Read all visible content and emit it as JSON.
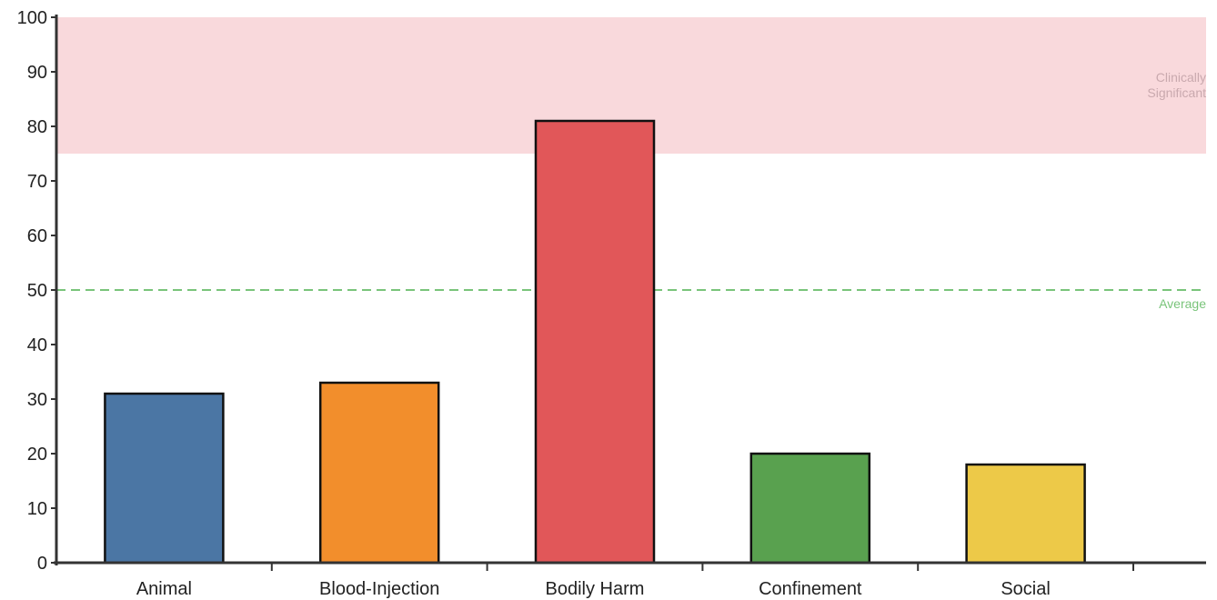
{
  "chart_data": {
    "type": "bar",
    "title": "",
    "xlabel": "",
    "ylabel": "",
    "categories": [
      "Animal",
      "Blood-Injection",
      "Bodily Harm",
      "Confinement",
      "Social"
    ],
    "values": [
      31,
      33,
      81,
      20,
      18
    ],
    "colors": [
      "#4b76a4",
      "#f28e2c",
      "#e15759",
      "#59a14f",
      "#edc948"
    ],
    "ylim": [
      0,
      100
    ],
    "yticks": [
      0,
      10,
      20,
      30,
      40,
      50,
      60,
      70,
      80,
      90,
      100
    ],
    "grid": false,
    "legend": "none",
    "reference_band": {
      "from": 75,
      "to": 100,
      "label_line1": "Clinically",
      "label_line2": "Significant",
      "color": "#f9d9dc"
    },
    "reference_line": {
      "value": 50,
      "label": "Average",
      "color": "#79c47a",
      "style": "dashed"
    }
  }
}
